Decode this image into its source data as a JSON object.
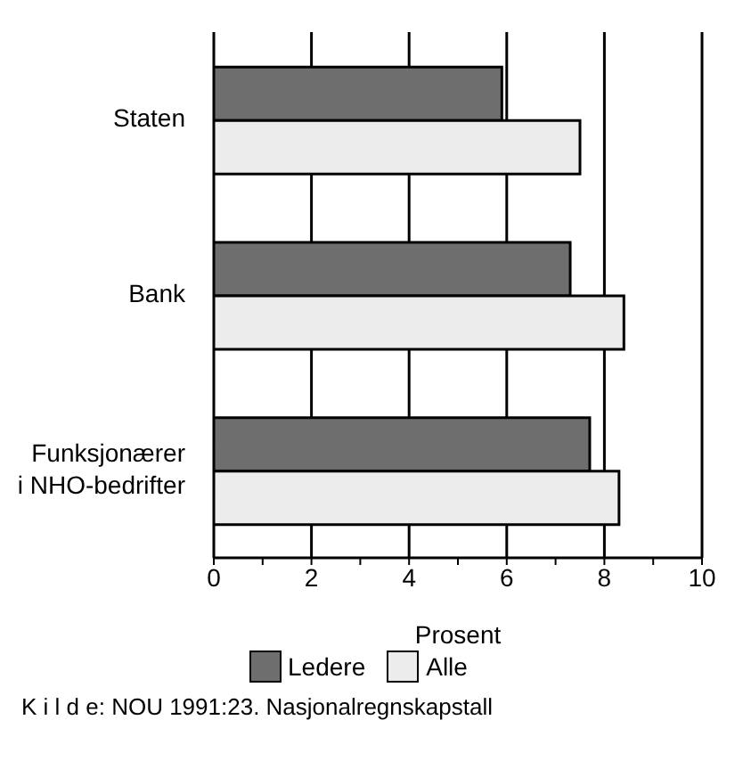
{
  "chart_data": {
    "type": "bar",
    "orientation": "horizontal",
    "xlabel": "Prosent",
    "categories": [
      "Staten",
      "Bank",
      "Funksjonærer\ni NHO-bedrifter"
    ],
    "series": [
      {
        "name": "Ledere",
        "color": "#6e6e6e",
        "values": [
          5.9,
          7.3,
          7.7
        ]
      },
      {
        "name": "Alle",
        "color": "#ececec",
        "values": [
          7.5,
          8.4,
          8.3
        ]
      }
    ],
    "xlim": [
      0,
      10
    ],
    "xticks": [
      0,
      {
        "value": 1,
        "label": null
      },
      2,
      {
        "value": 3,
        "label": null
      },
      4,
      {
        "value": 5,
        "label": null
      },
      6,
      {
        "value": 7,
        "label": null
      },
      8,
      {
        "value": 9,
        "label": null
      },
      10
    ],
    "grid": "x",
    "legend": "bottom",
    "annotations": [
      "K i l d e: NOU 1991:23. Nasjonalregnskapstall"
    ]
  }
}
